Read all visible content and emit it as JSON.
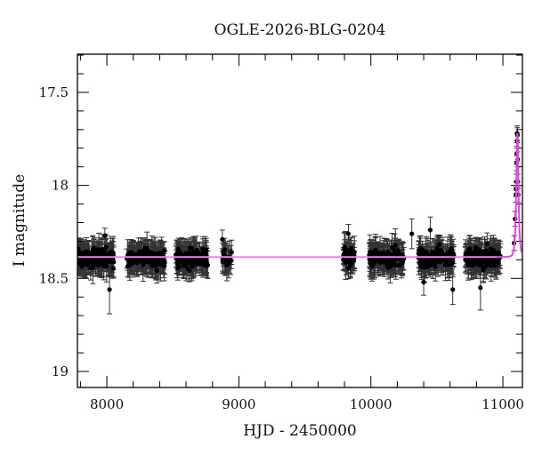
{
  "chart_data": {
    "type": "scatter",
    "title": "OGLE-2026-BLG-0204",
    "xlabel": "HJD - 2450000",
    "ylabel": "I magnitude",
    "xlim": [
      7777,
      11148
    ],
    "ylim": [
      19.086,
      17.295
    ],
    "y_inverted": true,
    "x_major_ticks": [
      8000,
      9000,
      10000,
      11000
    ],
    "x_tick_labels": [
      "8000",
      "9000",
      "10000",
      "11000"
    ],
    "x_minor_step": 200,
    "y_major_ticks": [
      17.5,
      18,
      18.5,
      19
    ],
    "y_tick_labels": [
      "17.5",
      "18",
      "18.5",
      "19"
    ],
    "y_minor_step": 0.1,
    "grid": false,
    "colors": {
      "points": "#000000",
      "errorbars": "#333333",
      "model": "#e040e0",
      "model_baseline": "#f080f0",
      "axes": "#000000"
    },
    "model": {
      "name": "microlensing model",
      "baseline_mag": 18.385,
      "t0": 11110,
      "peak_mag": 17.72,
      "tE": 12
    },
    "seasons": [
      {
        "range": [
          7777,
          8055
        ],
        "n_points": 160,
        "mean_mag": 18.39,
        "scatter": 0.05,
        "typical_err": 0.07
      },
      {
        "range": [
          8150,
          8440
        ],
        "n_points": 150,
        "mean_mag": 18.39,
        "scatter": 0.05,
        "typical_err": 0.07
      },
      {
        "range": [
          8520,
          8765
        ],
        "n_points": 130,
        "mean_mag": 18.39,
        "scatter": 0.05,
        "typical_err": 0.07
      },
      {
        "range": [
          8870,
          8945
        ],
        "n_points": 25,
        "mean_mag": 18.39,
        "scatter": 0.05,
        "typical_err": 0.07
      },
      {
        "range": [
          9790,
          9880
        ],
        "n_points": 40,
        "mean_mag": 18.39,
        "scatter": 0.05,
        "typical_err": 0.07
      },
      {
        "range": [
          9985,
          10250
        ],
        "n_points": 140,
        "mean_mag": 18.39,
        "scatter": 0.05,
        "typical_err": 0.07
      },
      {
        "range": [
          10360,
          10630
        ],
        "n_points": 140,
        "mean_mag": 18.39,
        "scatter": 0.05,
        "typical_err": 0.07
      },
      {
        "range": [
          10715,
          10985
        ],
        "n_points": 160,
        "mean_mag": 18.39,
        "scatter": 0.05,
        "typical_err": 0.07
      }
    ],
    "event_points": [
      {
        "x": 11085,
        "y": 18.31,
        "err": 0.04
      },
      {
        "x": 11092,
        "y": 18.18,
        "err": 0.04
      },
      {
        "x": 11098,
        "y": 18.05,
        "err": 0.04
      },
      {
        "x": 11100,
        "y": 18.02,
        "err": 0.04
      },
      {
        "x": 11102,
        "y": 17.98,
        "err": 0.04
      },
      {
        "x": 11104,
        "y": 17.88,
        "err": 0.04
      },
      {
        "x": 11105,
        "y": 17.83,
        "err": 0.04
      },
      {
        "x": 11107,
        "y": 17.76,
        "err": 0.04
      },
      {
        "x": 11108,
        "y": 17.72,
        "err": 0.04
      },
      {
        "x": 11110,
        "y": 17.73,
        "err": 0.04
      },
      {
        "x": 11112,
        "y": 17.86,
        "err": 0.04
      },
      {
        "x": 11114,
        "y": 17.98,
        "err": 0.04
      },
      {
        "x": 11116,
        "y": 18.05,
        "err": 0.04
      }
    ],
    "outliers": [
      {
        "x": 7985,
        "y": 18.27,
        "err": 0.04
      },
      {
        "x": 8020,
        "y": 18.56,
        "err": 0.13
      },
      {
        "x": 8875,
        "y": 18.29,
        "err": 0.05
      },
      {
        "x": 9830,
        "y": 18.26,
        "err": 0.05
      },
      {
        "x": 10310,
        "y": 18.26,
        "err": 0.08
      },
      {
        "x": 10450,
        "y": 18.24,
        "err": 0.07
      },
      {
        "x": 10400,
        "y": 18.52,
        "err": 0.07
      },
      {
        "x": 10830,
        "y": 18.55,
        "err": 0.12
      },
      {
        "x": 10620,
        "y": 18.56,
        "err": 0.08
      }
    ]
  }
}
